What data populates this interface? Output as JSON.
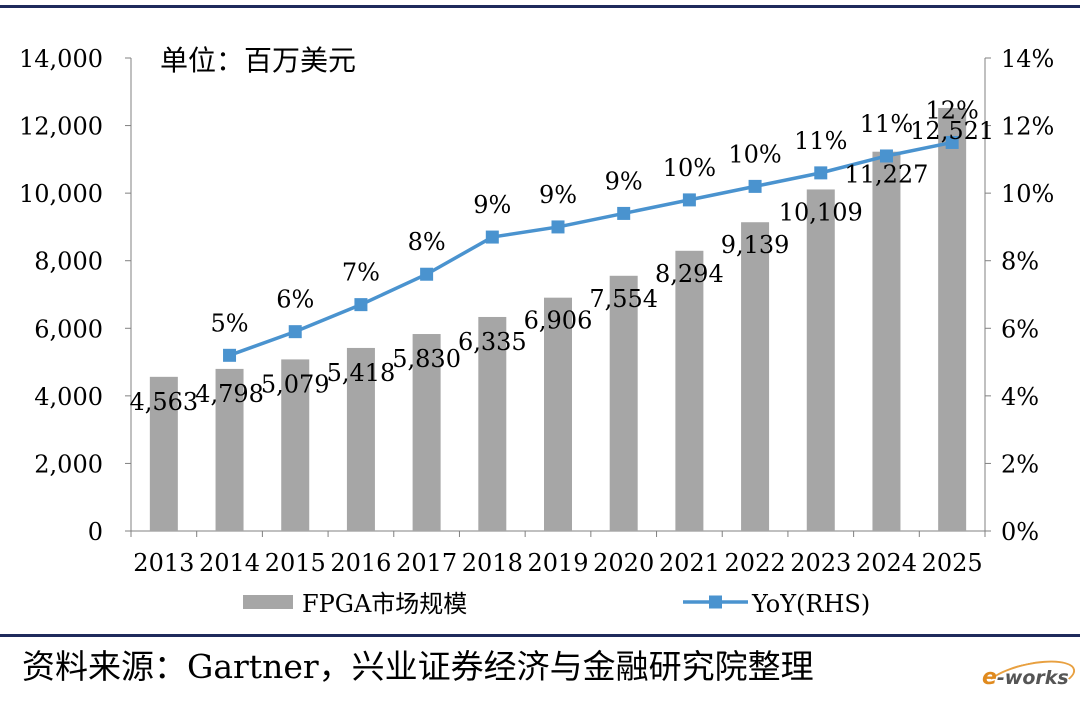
{
  "unit_label": "单位：百万美元",
  "source": "资料来源：Gartner，兴业证券经济与金融研究院整理",
  "logo_text": "e-works",
  "chart_data": {
    "type": "bar+line",
    "categories": [
      "2013",
      "2014",
      "2015",
      "2016",
      "2017",
      "2018",
      "2019",
      "2020",
      "2021",
      "2022",
      "2023",
      "2024",
      "2025"
    ],
    "series": [
      {
        "name": "FPGA市场规模",
        "type": "bar",
        "axis": "left",
        "color": "#a6a6a6",
        "values": [
          4563,
          4798,
          5079,
          5418,
          5830,
          6335,
          6906,
          7554,
          8294,
          9139,
          10109,
          11227,
          12521
        ],
        "labels": [
          "4,563",
          "4,798",
          "5,079",
          "5,418",
          "5,830",
          "6,335",
          "6,906",
          "7,554",
          "8,294",
          "9,139",
          "10,109",
          "11,227",
          "12,521"
        ]
      },
      {
        "name": "YoY(RHS)",
        "type": "line",
        "axis": "right",
        "color": "#4a93cf",
        "values": [
          null,
          5.2,
          5.9,
          6.7,
          7.6,
          8.7,
          9.0,
          9.4,
          9.8,
          10.2,
          10.6,
          11.1,
          11.5
        ],
        "labels": [
          "",
          "5%",
          "6%",
          "7%",
          "8%",
          "9%",
          "9%",
          "9%",
          "10%",
          "10%",
          "11%",
          "11%",
          "12%"
        ]
      }
    ],
    "left_axis": {
      "min": 0,
      "max": 14000,
      "ticks": [
        "0",
        "2,000",
        "4,000",
        "6,000",
        "8,000",
        "10,000",
        "12,000",
        "14,000"
      ]
    },
    "right_axis": {
      "min": 0,
      "max": 14,
      "ticks": [
        "0%",
        "2%",
        "4%",
        "6%",
        "8%",
        "10%",
        "12%",
        "14%"
      ]
    },
    "legend_position": "bottom"
  }
}
